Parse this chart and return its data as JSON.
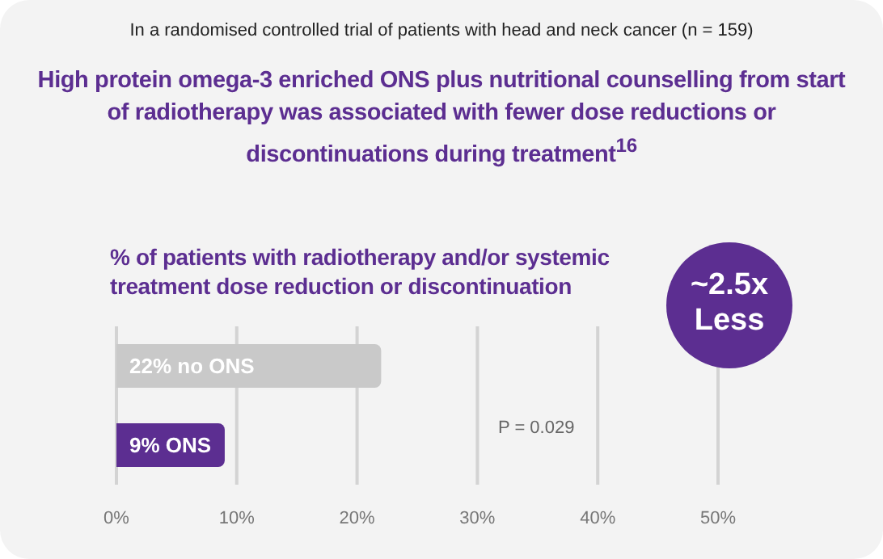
{
  "chart_data": {
    "type": "bar",
    "orientation": "horizontal",
    "title": "High protein omega-3 enriched ONS plus nutritional counselling from start of radiotherapy was associated with fewer dose reductions or discontinuations during treatment$^{16}$",
    "subtitle": "% of patients with radiotherapy and/or systemic treatment dose reduction or discontinuation",
    "categories": [
      null,
      null
    ],
    "values": [
      22,
      9
    ],
    "colors": [
      "#c9c9c9",
      "#5c2e91"
    ],
    "value_labels": [
      "22% no ONS",
      "9% ONS"
    ],
    "xlim": [
      0,
      50
    ],
    "xticks": [
      {
        "value": 0,
        "label": "0%"
      },
      {
        "value": 10,
        "label": "10%"
      },
      {
        "value": 20,
        "label": "20%"
      },
      {
        "value": 30,
        "label": "30%"
      },
      {
        "value": 40,
        "label": "40%"
      },
      {
        "value": 50,
        "label": "50%"
      }
    ],
    "grid": "x",
    "legend": false,
    "annotations": [
      "In a randomised controlled trial of patients with head and neck cancer (n = 159)",
      "P = 0.029",
      "~2.5x Less"
    ]
  }
}
